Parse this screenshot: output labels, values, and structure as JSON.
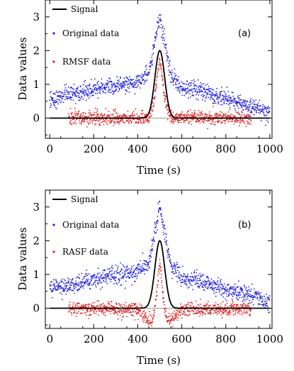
{
  "chart_data": [
    {
      "type": "scatter",
      "panel_label": "(a)",
      "xlabel": "Time (s)",
      "ylabel": "Data values",
      "xlim": [
        -20,
        1010
      ],
      "ylim": [
        -0.6,
        3.5
      ],
      "xticks": [
        0,
        200,
        400,
        600,
        800,
        1000
      ],
      "yticks": [
        0,
        1,
        2,
        3
      ],
      "legend_position": "top-left",
      "series": [
        {
          "name": "Signal",
          "kind": "line",
          "color": "#000000",
          "model": {
            "amplitude": 2.0,
            "center": 500,
            "sigma": 22,
            "x_range": [
              0,
              1000
            ]
          }
        },
        {
          "name": "Original data",
          "kind": "scatter",
          "color": "#1f1fe0",
          "trend_x": [
            0,
            100,
            200,
            300,
            400,
            450,
            500,
            550,
            600,
            700,
            800,
            900,
            1000
          ],
          "trend_y": [
            0.55,
            0.68,
            0.85,
            0.98,
            1.05,
            1.3,
            3.0,
            1.3,
            0.9,
            0.78,
            0.55,
            0.4,
            0.15
          ],
          "noise": 0.13,
          "x_range": [
            0,
            1000
          ]
        },
        {
          "name": "RMSF data",
          "kind": "scatter",
          "color": "#e01f1f",
          "trend_x": [
            85,
            450,
            470,
            500,
            530,
            550,
            915
          ],
          "trend_y": [
            0.0,
            0.0,
            0.35,
            1.75,
            0.35,
            0.0,
            0.0
          ],
          "noise": 0.1,
          "x_range": [
            85,
            915
          ]
        }
      ]
    },
    {
      "type": "scatter",
      "panel_label": "(b)",
      "xlabel": "Time (s)",
      "ylabel": "Data values",
      "xlim": [
        -20,
        1010
      ],
      "ylim": [
        -0.6,
        3.5
      ],
      "xticks": [
        0,
        200,
        400,
        600,
        800,
        1000
      ],
      "yticks": [
        0,
        1,
        2,
        3
      ],
      "legend_position": "top-left",
      "series": [
        {
          "name": "Signal",
          "kind": "line",
          "color": "#000000",
          "model": {
            "amplitude": 2.0,
            "center": 500,
            "sigma": 22,
            "x_range": [
              0,
              1000
            ]
          }
        },
        {
          "name": "Original data",
          "kind": "scatter",
          "color": "#1f1fe0",
          "trend_x": [
            0,
            100,
            200,
            300,
            400,
            450,
            500,
            550,
            600,
            700,
            800,
            900,
            1000
          ],
          "trend_y": [
            0.55,
            0.68,
            0.85,
            0.98,
            1.05,
            1.3,
            3.0,
            1.3,
            0.9,
            0.78,
            0.55,
            0.4,
            0.15
          ],
          "noise": 0.13,
          "x_range": [
            0,
            1000
          ]
        },
        {
          "name": "RASF data",
          "kind": "scatter",
          "color": "#e01f1f",
          "trend_x": [
            85,
            400,
            440,
            465,
            485,
            500,
            515,
            535,
            560,
            600,
            915
          ],
          "trend_y": [
            0.0,
            -0.05,
            -0.3,
            -0.45,
            0.3,
            1.4,
            0.3,
            -0.45,
            -0.3,
            -0.05,
            0.0
          ],
          "noise": 0.1,
          "x_range": [
            85,
            915
          ]
        }
      ]
    }
  ]
}
